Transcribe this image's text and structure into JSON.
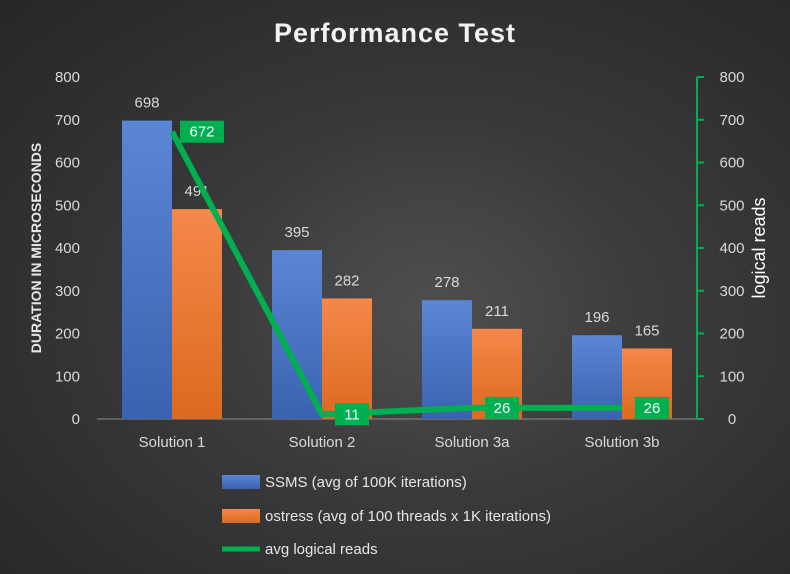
{
  "chart_data": {
    "type": "bar",
    "title": "Performance Test",
    "categories": [
      "Solution 1",
      "Solution 2",
      "Solution 3a",
      "Solution 3b"
    ],
    "ylabel": "DURATION IN MICROSECONDS",
    "ylim": [
      0,
      800
    ],
    "y_ticks": [
      0,
      100,
      200,
      300,
      400,
      500,
      600,
      700,
      800
    ],
    "y2label": "logical reads",
    "y2lim": [
      0,
      800
    ],
    "y2_ticks": [
      0,
      100,
      200,
      300,
      400,
      500,
      600,
      700,
      800
    ],
    "grid": false,
    "legend_position": "bottom",
    "series": [
      {
        "name": "SSMS (avg of 100K iterations)",
        "kind": "bar",
        "axis": "primary",
        "color": "#4472c4",
        "values": [
          698,
          395,
          278,
          196
        ]
      },
      {
        "name": "ostress (avg of 100 threads x 1K iterations)",
        "kind": "bar",
        "axis": "primary",
        "color": "#ed7d31",
        "values": [
          491,
          282,
          211,
          165
        ]
      },
      {
        "name": "avg logical reads",
        "kind": "line",
        "axis": "secondary",
        "color": "#00b050",
        "values": [
          672,
          11,
          26,
          26
        ]
      }
    ]
  }
}
